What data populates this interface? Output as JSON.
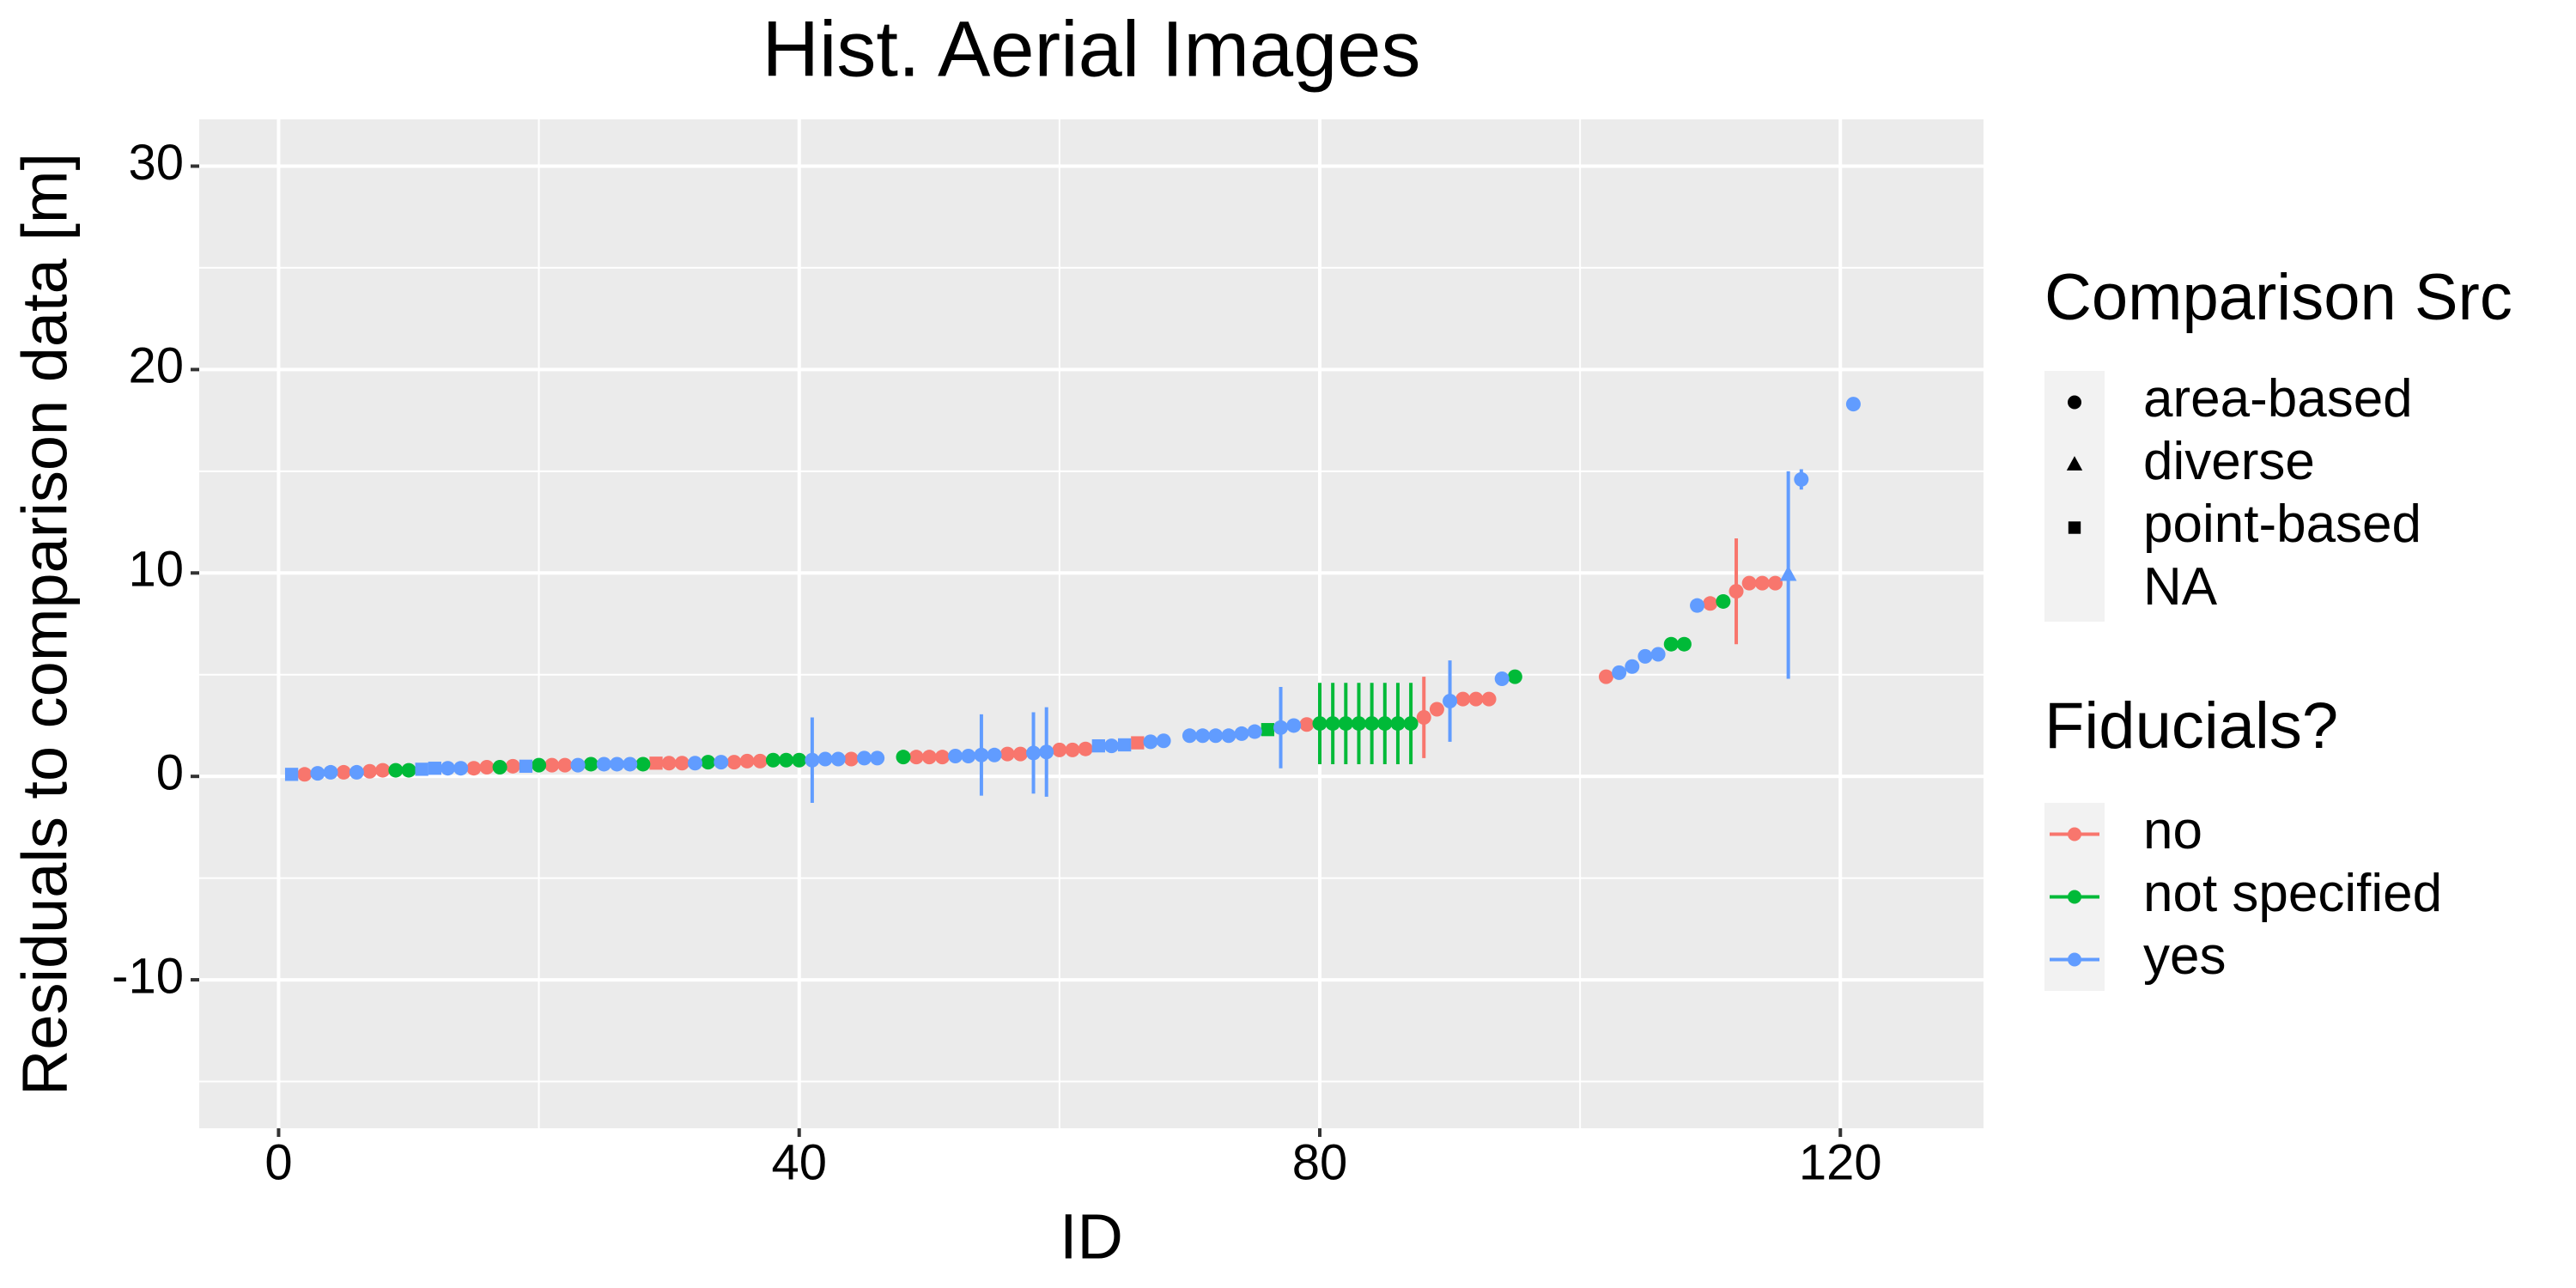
{
  "chart_data": {
    "type": "scatter",
    "title": "Hist. Aerial Images",
    "x_label": "ID",
    "y_label": "Residuals to comparison data [m]",
    "xlim": [
      -6.1,
      131
    ],
    "ylim": [
      -17.3,
      32.3
    ],
    "xticks": [
      0,
      40,
      80,
      120
    ],
    "yticks": [
      -10,
      0,
      10,
      20,
      30
    ],
    "grid": true,
    "shape_legend": {
      "title": "Comparison Src",
      "labels": [
        "area-based",
        "diverse",
        "point-based",
        "NA"
      ]
    },
    "color_legend_title": "Fiducials?",
    "series": [
      {
        "name": "no",
        "color": "#F8766D",
        "x": [
          2,
          5,
          7,
          8,
          15,
          16,
          18,
          21,
          22,
          29,
          30,
          31,
          35,
          36,
          37,
          44,
          49,
          50,
          51,
          56,
          57,
          60,
          61,
          62,
          66,
          79,
          88,
          89,
          91,
          92,
          93,
          102,
          110,
          112,
          113,
          114,
          115
        ],
        "values": [
          0.1,
          0.2,
          0.25,
          0.3,
          0.4,
          0.45,
          0.5,
          0.55,
          0.55,
          0.65,
          0.65,
          0.65,
          0.7,
          0.75,
          0.75,
          0.85,
          0.95,
          0.95,
          0.95,
          1.1,
          1.1,
          1.3,
          1.3,
          1.35,
          1.65,
          2.55,
          2.9,
          3.3,
          3.8,
          3.8,
          3.8,
          4.9,
          8.5,
          9.1,
          9.5,
          9.5,
          9.5
        ],
        "errors": [
          null,
          null,
          null,
          null,
          null,
          null,
          null,
          null,
          null,
          null,
          null,
          null,
          null,
          null,
          null,
          null,
          null,
          null,
          null,
          null,
          null,
          null,
          null,
          null,
          null,
          null,
          2.0,
          null,
          null,
          null,
          null,
          null,
          null,
          2.6,
          null,
          null,
          null
        ],
        "src": [
          "area-based",
          "area-based",
          "area-based",
          "area-based",
          "area-based",
          "area-based",
          "area-based",
          "area-based",
          "area-based",
          "point-based",
          "area-based",
          "area-based",
          "area-based",
          "area-based",
          "area-based",
          "area-based",
          "area-based",
          "area-based",
          "area-based",
          "area-based",
          "area-based",
          "area-based",
          "area-based",
          "area-based",
          "point-based",
          "area-based",
          "area-based",
          "area-based",
          "area-based",
          "area-based",
          "area-based",
          "area-based",
          "area-based",
          "area-based",
          "area-based",
          "area-based",
          "area-based"
        ]
      },
      {
        "name": "not specified",
        "color": "#00BA38",
        "x": [
          9,
          10,
          17,
          20,
          24,
          28,
          33,
          38,
          39,
          40,
          48,
          76,
          80,
          81,
          82,
          83,
          84,
          85,
          86,
          87,
          95,
          107,
          108,
          111
        ],
        "values": [
          0.3,
          0.3,
          0.45,
          0.55,
          0.6,
          0.6,
          0.7,
          0.8,
          0.8,
          0.8,
          0.95,
          2.3,
          2.6,
          2.6,
          2.6,
          2.6,
          2.6,
          2.6,
          2.6,
          2.6,
          4.9,
          6.5,
          6.5,
          8.6
        ],
        "errors": [
          null,
          null,
          null,
          null,
          null,
          null,
          null,
          null,
          null,
          null,
          null,
          null,
          2.0,
          2.0,
          2.0,
          2.0,
          2.0,
          2.0,
          2.0,
          2.0,
          null,
          null,
          null,
          null
        ],
        "src": [
          "area-based",
          "area-based",
          "area-based",
          "area-based",
          "area-based",
          "area-based",
          "area-based",
          "area-based",
          "area-based",
          "area-based",
          "area-based",
          "point-based",
          "area-based",
          "area-based",
          "area-based",
          "area-based",
          "area-based",
          "area-based",
          "area-based",
          "area-based",
          "area-based",
          "area-based",
          "area-based",
          "area-based"
        ]
      },
      {
        "name": "yes",
        "color": "#619CFF",
        "x": [
          1,
          3,
          4,
          6,
          11,
          12,
          13,
          14,
          19,
          23,
          25,
          26,
          27,
          32,
          34,
          41,
          42,
          43,
          45,
          46,
          52,
          53,
          54,
          55,
          58,
          59,
          63,
          64,
          65,
          67,
          68,
          70,
          71,
          72,
          73,
          74,
          75,
          77,
          78,
          90,
          94,
          103,
          104,
          105,
          106,
          109,
          116,
          117,
          121
        ],
        "values": [
          0.1,
          0.15,
          0.2,
          0.2,
          0.35,
          0.4,
          0.4,
          0.4,
          0.5,
          0.55,
          0.6,
          0.6,
          0.6,
          0.65,
          0.7,
          0.8,
          0.85,
          0.85,
          0.9,
          0.9,
          1.0,
          1.0,
          1.05,
          1.05,
          1.15,
          1.2,
          1.5,
          1.5,
          1.55,
          1.7,
          1.75,
          2.0,
          2.0,
          2.0,
          2.0,
          2.1,
          2.2,
          2.4,
          2.5,
          3.7,
          4.8,
          5.1,
          5.4,
          5.9,
          6.0,
          8.4,
          9.9,
          14.6,
          18.3
        ],
        "errors": [
          null,
          null,
          null,
          null,
          null,
          null,
          null,
          null,
          null,
          null,
          null,
          null,
          null,
          null,
          null,
          2.1,
          null,
          null,
          null,
          null,
          null,
          null,
          2.0,
          null,
          2.0,
          2.2,
          null,
          null,
          null,
          null,
          null,
          null,
          null,
          null,
          null,
          null,
          null,
          2.0,
          null,
          2.0,
          null,
          null,
          null,
          null,
          null,
          null,
          5.1,
          0.5,
          null
        ],
        "src": [
          "point-based",
          "area-based",
          "area-based",
          "area-based",
          "point-based",
          "point-based",
          "area-based",
          "area-based",
          "point-based",
          "area-based",
          "area-based",
          "area-based",
          "area-based",
          "area-based",
          "area-based",
          "area-based",
          "area-based",
          "area-based",
          "area-based",
          "area-based",
          "area-based",
          "area-based",
          "area-based",
          "area-based",
          "area-based",
          "area-based",
          "point-based",
          "area-based",
          "point-based",
          "area-based",
          "area-based",
          "area-based",
          "area-based",
          "area-based",
          "area-based",
          "area-based",
          "area-based",
          "area-based",
          "area-based",
          "area-based",
          "area-based",
          "area-based",
          "area-based",
          "area-based",
          "area-based",
          "area-based",
          "diverse",
          "area-based",
          "area-based"
        ]
      }
    ]
  }
}
